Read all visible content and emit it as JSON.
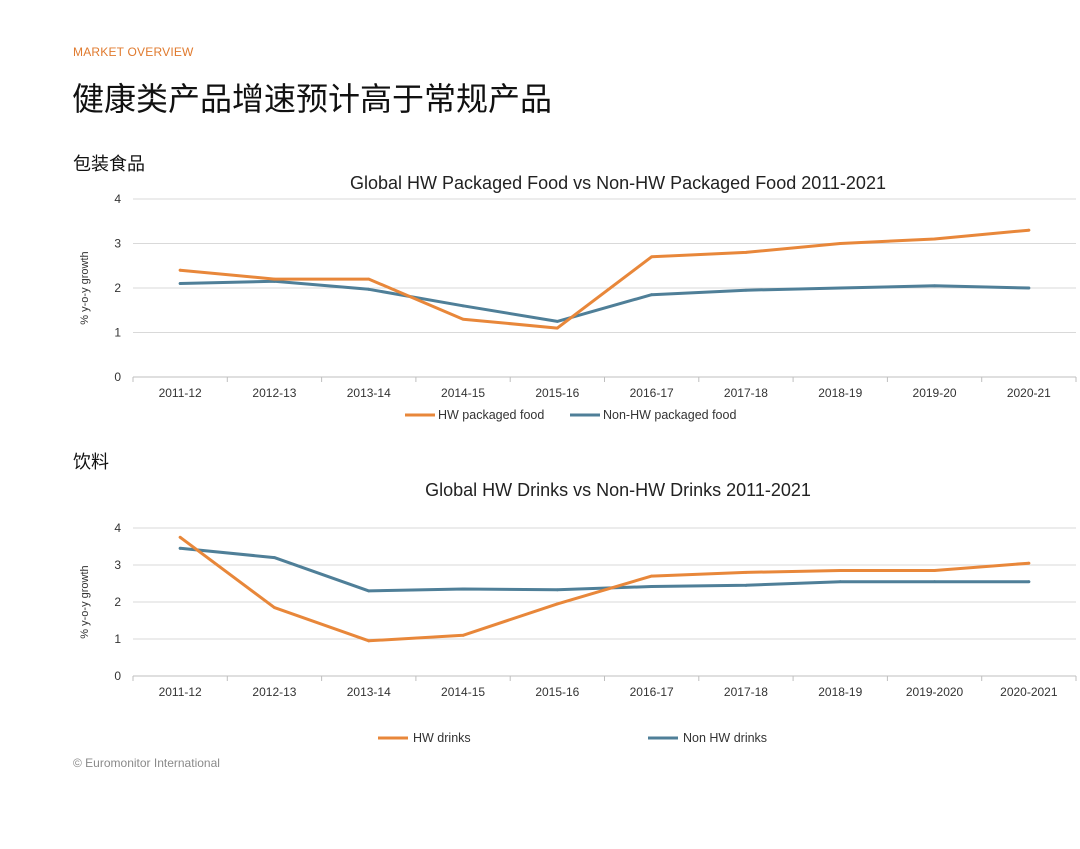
{
  "header": {
    "kicker": "MARKET OVERVIEW",
    "title": "健康类产品增速预计高于常规产品"
  },
  "sections": [
    {
      "label": "包装食品"
    },
    {
      "label": "饮料"
    }
  ],
  "footer": {
    "source": "© Euromonitor International"
  },
  "colors": {
    "hw": "#e8873a",
    "non_hw": "#4f7f98",
    "grid": "#d9d9d9",
    "kicker": "#e07a2e"
  },
  "chart_data": [
    {
      "type": "line",
      "title": "Global HW Packaged Food vs Non-HW Packaged Food 2011-2021",
      "xlabel": "",
      "ylabel": "% y-o-y growth",
      "ylim": [
        0,
        4
      ],
      "yticks": [
        "0",
        "1",
        "2",
        "3",
        "4"
      ],
      "grid": true,
      "legend": "bottom",
      "categories": [
        "2011-12",
        "2012-13",
        "2013-14",
        "2014-15",
        "2015-16",
        "2016-17",
        "2017-18",
        "2018-19",
        "2019-20",
        "2020-21"
      ],
      "series": [
        {
          "name": "HW packaged food",
          "color": "#e8873a",
          "values": [
            2.4,
            2.2,
            2.2,
            1.3,
            1.1,
            2.7,
            2.8,
            3.0,
            3.1,
            3.3
          ]
        },
        {
          "name": "Non-HW packaged food",
          "color": "#4f7f98",
          "values": [
            2.1,
            2.15,
            1.97,
            1.6,
            1.25,
            1.85,
            1.95,
            2.0,
            2.05,
            2.0
          ]
        }
      ]
    },
    {
      "type": "line",
      "title": "Global HW Drinks vs Non-HW Drinks 2011-2021",
      "xlabel": "",
      "ylabel": "% y-o-y growth",
      "ylim": [
        0,
        4
      ],
      "yticks": [
        "0",
        "1",
        "2",
        "3",
        "4"
      ],
      "grid": true,
      "legend": "bottom",
      "categories": [
        "2011-12",
        "2012-13",
        "2013-14",
        "2014-15",
        "2015-16",
        "2016-17",
        "2017-18",
        "2018-19",
        "2019-2020",
        "2020-2021"
      ],
      "series": [
        {
          "name": "HW drinks",
          "color": "#e8873a",
          "values": [
            3.75,
            1.85,
            0.95,
            1.1,
            1.95,
            2.7,
            2.8,
            2.85,
            2.85,
            3.05
          ]
        },
        {
          "name": "Non HW drinks",
          "color": "#4f7f98",
          "values": [
            3.45,
            3.2,
            2.3,
            2.35,
            2.33,
            2.42,
            2.45,
            2.55,
            2.55,
            2.55
          ]
        }
      ]
    }
  ]
}
